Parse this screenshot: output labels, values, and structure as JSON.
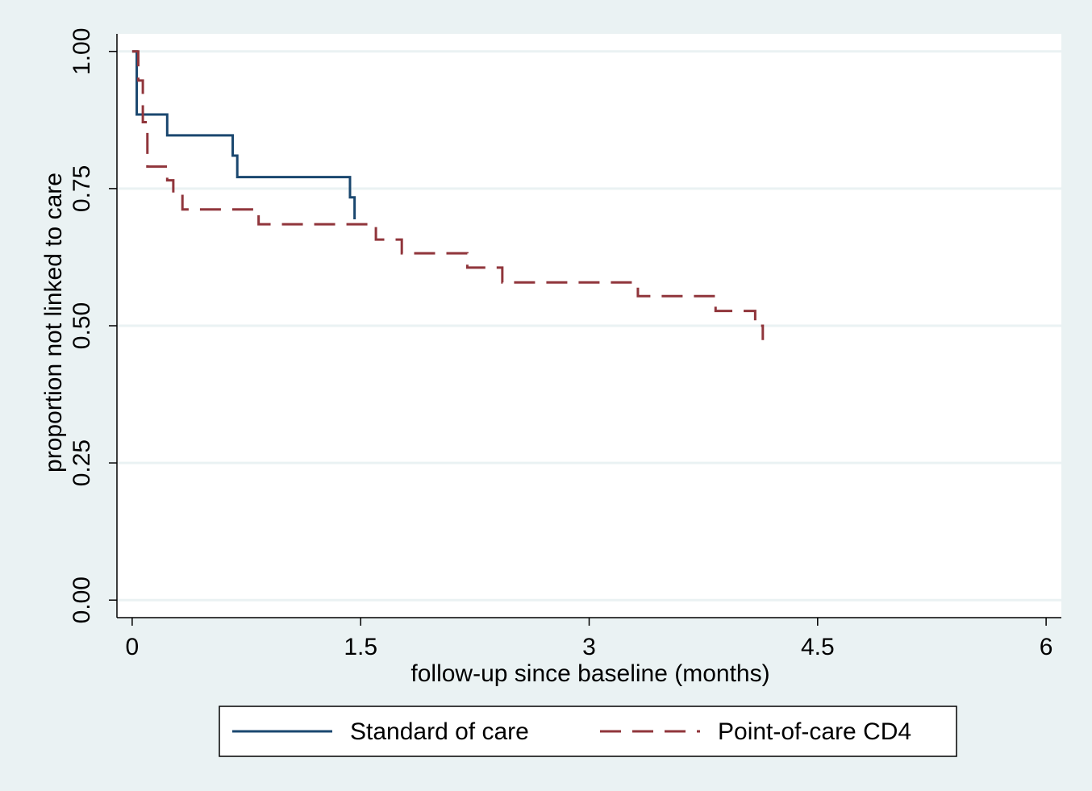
{
  "chart_data": {
    "type": "step",
    "x_label": "follow-up since baseline (months)",
    "y_label": "proportion not linked to care",
    "xlim": [
      -0.1,
      6.1
    ],
    "ylim": [
      -0.032,
      1.032
    ],
    "xticks": [
      0,
      1.5,
      3,
      4.5,
      6
    ],
    "yticks": [
      {
        "value": 0,
        "label": "0.00"
      },
      {
        "value": 0.25,
        "label": "0.25"
      },
      {
        "value": 0.5,
        "label": "0.50"
      },
      {
        "value": 0.75,
        "label": "0.75"
      },
      {
        "value": 1,
        "label": "1.00"
      }
    ],
    "grid": true,
    "legend_position": "bottom",
    "series": [
      {
        "name": "Standard of care",
        "color": "#1a476f",
        "line_style": "solid",
        "x": [
          0,
          0.03,
          0.23,
          0.66,
          0.69,
          1.43,
          1.46
        ],
        "values": [
          1.0,
          0.885,
          0.847,
          0.81,
          0.771,
          0.734,
          0.694
        ]
      },
      {
        "name": "Point-of-care CD4",
        "color": "#90353b",
        "line_style": "dashed",
        "x": [
          0,
          0.04,
          0.07,
          0.1,
          0.23,
          0.27,
          0.33,
          0.83,
          1.6,
          1.77,
          2.2,
          2.43,
          3.32,
          3.83,
          4.09,
          4.14
        ],
        "values": [
          1.0,
          0.947,
          0.871,
          0.79,
          0.765,
          0.74,
          0.712,
          0.685,
          0.657,
          0.632,
          0.606,
          0.579,
          0.554,
          0.527,
          0.5,
          0.474
        ]
      }
    ]
  }
}
